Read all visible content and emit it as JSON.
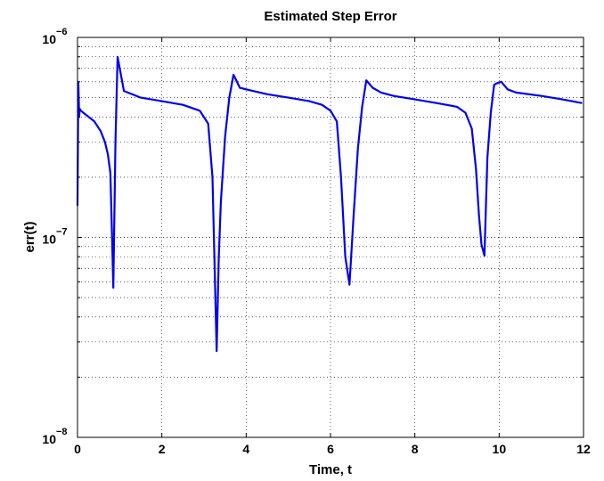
{
  "chart_data": {
    "type": "line",
    "title": "Estimated Step Error",
    "xlabel": "Time, t",
    "ylabel": "err(t)",
    "xlim": [
      0,
      12
    ],
    "ylim": [
      1e-08,
      1e-06
    ],
    "yscale": "log",
    "grid": true,
    "x_ticks": [
      0,
      2,
      4,
      6,
      8,
      10,
      12
    ],
    "x_tick_labels": [
      "0",
      "2",
      "4",
      "6",
      "8",
      "10",
      "12"
    ],
    "y_ticks": [
      {
        "value": 1e-08,
        "base": "10",
        "exp": "−8"
      },
      {
        "value": 1e-07,
        "base": "10",
        "exp": "−7"
      },
      {
        "value": 1e-06,
        "base": "10",
        "exp": "−6"
      }
    ],
    "line_color": "#0000ee",
    "series": [
      {
        "x": [
          0.0,
          0.02,
          0.04,
          0.05,
          0.08,
          0.2,
          0.4,
          0.55,
          0.65,
          0.72,
          0.78,
          0.82,
          0.85,
          0.9,
          0.95,
          1.1,
          1.5,
          2.0,
          2.5,
          2.9,
          3.1,
          3.2,
          3.3,
          3.35,
          3.4,
          3.5,
          3.6,
          3.7,
          3.75,
          3.85,
          4.0,
          4.5,
          5.0,
          5.5,
          5.8,
          6.0,
          6.15,
          6.25,
          6.35,
          6.45,
          6.55,
          6.65,
          6.75,
          6.85,
          7.0,
          7.2,
          7.5,
          8.0,
          8.5,
          9.0,
          9.2,
          9.35,
          9.45,
          9.52,
          9.58,
          9.65,
          9.72,
          9.8,
          9.88,
          9.95,
          10.05,
          10.2,
          10.4,
          11.0,
          11.5,
          11.95
        ],
        "y": [
          1.45e-07,
          6e-07,
          4e-07,
          4.4e-07,
          4.3e-07,
          4.1e-07,
          3.8e-07,
          3.4e-07,
          3e-07,
          2.6e-07,
          2.1e-07,
          1e-07,
          5.6e-08,
          3e-07,
          8e-07,
          5.4e-07,
          5e-07,
          4.8e-07,
          4.6e-07,
          4.3e-07,
          3.7e-07,
          2e-07,
          2.7e-08,
          8e-08,
          1.5e-07,
          3.2e-07,
          5e-07,
          6.5e-07,
          6.2e-07,
          5.6e-07,
          5.5e-07,
          5.2e-07,
          5e-07,
          4.8e-07,
          4.6e-07,
          4.3e-07,
          3.8e-07,
          2e-07,
          8e-08,
          5.8e-08,
          1.3e-07,
          2.8e-07,
          4.5e-07,
          6.1e-07,
          5.6e-07,
          5.3e-07,
          5.1e-07,
          4.9e-07,
          4.7e-07,
          4.5e-07,
          4.2e-07,
          3.5e-07,
          2.2e-07,
          1.3e-07,
          9.2e-08,
          8.1e-08,
          2.5e-07,
          4.2e-07,
          5.8e-07,
          5.9e-07,
          6e-07,
          5.5e-07,
          5.3e-07,
          5.1e-07,
          4.9e-07,
          4.7e-07
        ]
      }
    ]
  }
}
